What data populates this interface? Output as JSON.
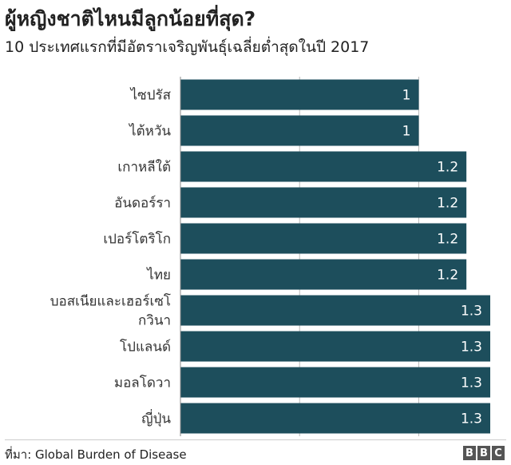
{
  "chart_data": {
    "type": "bar",
    "orientation": "horizontal",
    "title": "ผู้หญิงชาติไหนมีลูกน้อยที่สุด?",
    "subtitle": "10 ประเทศแรกที่มีอัตราเจริญพันธุ์เฉลี่ยต่ำสุดในปี 2017",
    "categories": [
      "ไซปรัส",
      "ไต้หวัน",
      "เกาหลีใต้",
      "อันดอร์รา",
      "เปอร์โตริโก",
      "ไทย",
      "บอสเนียและเฮอร์เซโกวินา",
      "โปแลนด์",
      "มอลโดวา",
      "ญี่ปุ่น"
    ],
    "category_lines": [
      [
        "ไซปรัส"
      ],
      [
        "ไต้หวัน"
      ],
      [
        "เกาหลีใต้"
      ],
      [
        "อันดอร์รา"
      ],
      [
        "เปอร์โตริโก"
      ],
      [
        "ไทย"
      ],
      [
        "บอสเนียและเฮอร์เซโ",
        "กวินา"
      ],
      [
        "โปแลนด์"
      ],
      [
        "มอลโดวา"
      ],
      [
        "ญี่ปุ่น"
      ]
    ],
    "values": [
      1,
      1,
      1.2,
      1.2,
      1.2,
      1.2,
      1.3,
      1.3,
      1.3,
      1.3
    ],
    "value_labels": [
      "1",
      "1",
      "1.2",
      "1.2",
      "1.2",
      "1.2",
      "1.3",
      "1.3",
      "1.3",
      "1.3"
    ],
    "xlim": [
      0,
      1.3
    ],
    "grid": true,
    "bar_color": "#1d4e5c",
    "gridline_color": "#bbbbbb"
  },
  "footer": {
    "source": "ที่มา: Global Burden of Disease",
    "logo_letters": [
      "B",
      "B",
      "C"
    ]
  }
}
